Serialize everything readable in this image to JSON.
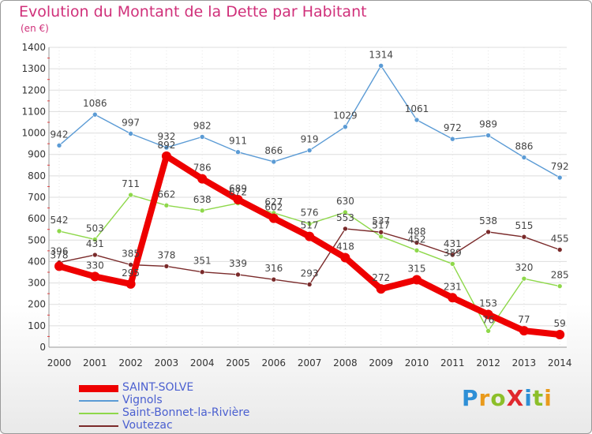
{
  "title": "Evolution du Montant de la Dette par Habitant",
  "subtitle": "(en €)",
  "logo": "ProXiti",
  "chart_data": {
    "type": "line",
    "categories": [
      "2000",
      "2001",
      "2002",
      "2003",
      "2004",
      "2005",
      "2006",
      "2007",
      "2008",
      "2009",
      "2010",
      "2011",
      "2012",
      "2013",
      "2014"
    ],
    "ylim": [
      0,
      1400
    ],
    "yticks": [
      0,
      100,
      200,
      300,
      400,
      500,
      600,
      700,
      800,
      900,
      1000,
      1100,
      1200,
      1300,
      1400
    ],
    "grid": true,
    "legend_position": "bottom-left",
    "series": [
      {
        "name": "SAINT-SOLVE",
        "color": "#ee0000",
        "values": [
          378,
          330,
          295,
          892,
          786,
          689,
          602,
          517,
          418,
          272,
          315,
          231,
          153,
          77,
          59
        ]
      },
      {
        "name": "Vignols",
        "color": "#5b9bd5",
        "values": [
          942,
          1086,
          997,
          932,
          982,
          911,
          866,
          919,
          1029,
          1314,
          1061,
          972,
          989,
          886,
          792
        ]
      },
      {
        "name": "Saint-Bonnet-la-Rivière",
        "color": "#8ed84a",
        "values": [
          542,
          503,
          711,
          662,
          638,
          672,
          627,
          576,
          630,
          517,
          452,
          389,
          76,
          320,
          285
        ]
      },
      {
        "name": "Voutezac",
        "color": "#7a2a2a",
        "values": [
          396,
          431,
          385,
          378,
          351,
          339,
          316,
          293,
          553,
          537,
          488,
          431,
          538,
          515,
          455
        ]
      }
    ]
  }
}
